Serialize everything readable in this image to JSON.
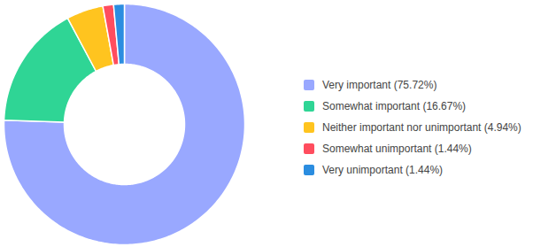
{
  "chart_data": {
    "type": "pie",
    "categories": [
      "Very important (75.72%)",
      "Somewhat important (16.67%)",
      "Neither important nor unimportant (4.94%)",
      "Somewhat unimportant (1.44%)",
      "Very unimportant (1.44%)"
    ],
    "values": [
      75.72,
      16.67,
      4.94,
      1.44,
      1.44
    ],
    "colors": [
      "#99a8ff",
      "#2fd595",
      "#ffc41f",
      "#ff4d5e",
      "#2b8de0"
    ],
    "legend": "right"
  }
}
